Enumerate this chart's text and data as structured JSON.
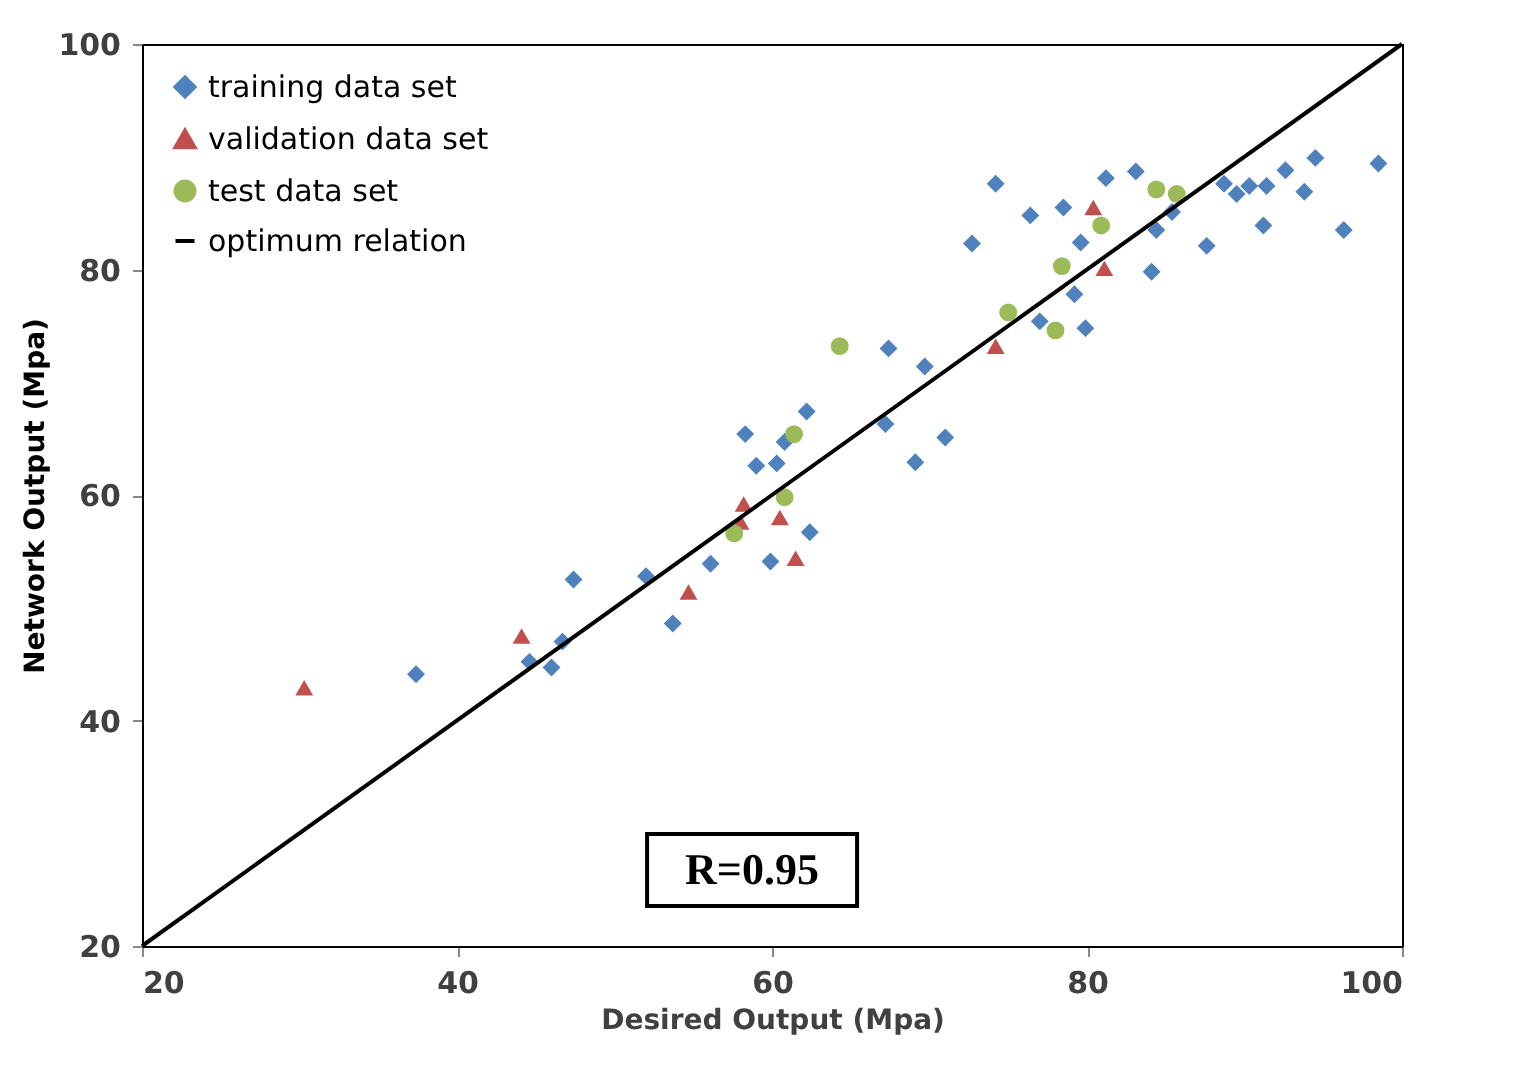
{
  "chart_data": {
    "type": "scatter",
    "xlabel": "Desired Output (Mpa)",
    "ylabel": "Network Output (Mpa)",
    "xlim": [
      20,
      100
    ],
    "ylim": [
      20,
      100
    ],
    "xticks": [
      20,
      40,
      60,
      80,
      100
    ],
    "yticks": [
      20,
      40,
      60,
      80,
      100
    ],
    "grid": false,
    "legend": "top left",
    "annotations": [
      "R=0.95"
    ],
    "series": [
      {
        "name": "training data set",
        "marker": "diamond",
        "color": "#4f81bd",
        "x": [
          37.4,
          44.6,
          46.0,
          46.7,
          47.4,
          52.0,
          53.7,
          56.1,
          59.9,
          62.4,
          58.3,
          59.0,
          60.3,
          60.8,
          62.2,
          67.2,
          69.1,
          71.0,
          67.4,
          69.7,
          72.7,
          74.2,
          76.4,
          78.5,
          79.6,
          79.2,
          77.0,
          79.9,
          81.2,
          83.1,
          84.4,
          85.4,
          84.1,
          87.6,
          88.7,
          89.5,
          90.3,
          91.4,
          91.2,
          92.6,
          93.8,
          94.5,
          96.3,
          98.5
        ],
        "values": [
          44.1,
          45.2,
          44.7,
          47.0,
          52.5,
          52.8,
          48.6,
          53.9,
          54.1,
          56.7,
          65.4,
          62.6,
          62.8,
          64.7,
          67.4,
          66.3,
          62.9,
          65.1,
          73.0,
          71.4,
          82.3,
          87.6,
          84.8,
          85.5,
          82.4,
          77.8,
          75.4,
          74.8,
          88.1,
          88.7,
          83.5,
          85.1,
          79.8,
          82.1,
          87.6,
          86.7,
          87.4,
          87.4,
          83.9,
          88.8,
          86.9,
          89.9,
          83.5,
          89.4
        ]
      },
      {
        "name": "validation data set",
        "marker": "triangle",
        "color": "#c0504d",
        "x": [
          30.3,
          44.1,
          54.7,
          58.2,
          58.0,
          60.5,
          61.5,
          74.2,
          80.4,
          81.1
        ],
        "values": [
          42.9,
          47.5,
          51.4,
          59.2,
          57.6,
          58.0,
          54.4,
          73.2,
          85.5,
          80.1
        ]
      },
      {
        "name": "test data set",
        "marker": "circle",
        "color": "#9bbb59",
        "x": [
          64.3,
          61.4,
          60.8,
          57.6,
          75.0,
          78.0,
          78.4,
          80.9,
          84.4,
          85.7
        ],
        "values": [
          73.2,
          65.4,
          59.8,
          56.6,
          76.2,
          74.6,
          80.3,
          83.9,
          87.1,
          86.7
        ]
      },
      {
        "name": "optimum relation",
        "type": "line",
        "color": "#000000",
        "x": [
          20,
          100
        ],
        "values": [
          20,
          100
        ]
      }
    ]
  }
}
